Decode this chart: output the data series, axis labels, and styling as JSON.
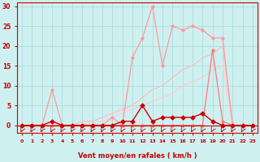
{
  "x_ticks": [
    0,
    1,
    2,
    3,
    4,
    5,
    6,
    7,
    8,
    9,
    10,
    11,
    12,
    13,
    14,
    15,
    16,
    17,
    18,
    19,
    20,
    21,
    22,
    23
  ],
  "xlabel": "Vent moyen/en rafales ( km/h )",
  "ylim": [
    -2,
    31
  ],
  "xlim": [
    -0.5,
    23.5
  ],
  "yticks": [
    0,
    5,
    10,
    15,
    20,
    25,
    30
  ],
  "background_color": "#cff0f0",
  "grid_color": "#a8d8d8",
  "line_jagged_x": [
    0,
    1,
    2,
    3,
    4,
    5,
    6,
    7,
    8,
    9,
    10,
    11,
    12,
    13,
    14,
    15,
    16,
    17,
    18,
    19,
    20,
    21,
    22,
    23
  ],
  "line_jagged_y": [
    0,
    0,
    0,
    9,
    0,
    0,
    0,
    0,
    0,
    2,
    0,
    17,
    22,
    30,
    15,
    25,
    24,
    25,
    24,
    22,
    22,
    0,
    0,
    0
  ],
  "line_jagged_color": "#ff9999",
  "line_diag1_x": [
    0,
    1,
    2,
    3,
    4,
    5,
    6,
    7,
    8,
    9,
    10,
    11,
    12,
    13,
    14,
    15,
    16,
    17,
    18,
    19,
    20,
    21,
    22,
    23
  ],
  "line_diag1_y": [
    0,
    0,
    0,
    0,
    0,
    0,
    1,
    1,
    2,
    3,
    4,
    5,
    7,
    9,
    10,
    12,
    14,
    15,
    17,
    18,
    20,
    0,
    0,
    0
  ],
  "line_diag1_color": "#ffbbbb",
  "line_diag2_x": [
    0,
    1,
    2,
    3,
    4,
    5,
    6,
    7,
    8,
    9,
    10,
    11,
    12,
    13,
    14,
    15,
    16,
    17,
    18,
    19,
    20,
    21,
    22,
    23
  ],
  "line_diag2_y": [
    0,
    0,
    0,
    0,
    0,
    0,
    0,
    1,
    1,
    2,
    3,
    4,
    5,
    6,
    7,
    8,
    10,
    11,
    12,
    14,
    15,
    0,
    0,
    0
  ],
  "line_diag2_color": "#ffcccc",
  "line_pink_x": [
    0,
    1,
    2,
    3,
    4,
    5,
    6,
    7,
    8,
    9,
    10,
    11,
    12,
    13,
    14,
    15,
    16,
    17,
    18,
    19,
    20,
    21,
    22,
    23
  ],
  "line_pink_y": [
    0,
    0,
    0,
    0,
    0,
    0,
    0,
    0,
    0,
    0,
    0,
    0,
    0,
    0,
    0,
    0,
    0,
    0,
    0,
    19,
    1,
    0,
    0,
    0
  ],
  "line_pink_color": "#ff7777",
  "line_darkred_x": [
    0,
    1,
    2,
    3,
    4,
    5,
    6,
    7,
    8,
    9,
    10,
    11,
    12,
    13,
    14,
    15,
    16,
    17,
    18,
    19,
    20,
    21,
    22,
    23
  ],
  "line_darkred_y": [
    0,
    0,
    0,
    1,
    0,
    0,
    0,
    0,
    0,
    0,
    1,
    1,
    5,
    1,
    2,
    2,
    2,
    2,
    3,
    1,
    0,
    0,
    0,
    0
  ],
  "line_darkred_color": "#cc0000",
  "arrow_color": "#cc0000",
  "tick_color": "#cc0000",
  "label_color": "#cc0000"
}
